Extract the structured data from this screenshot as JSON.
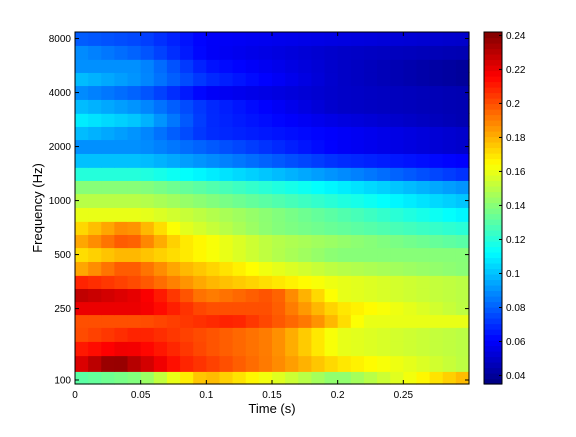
{
  "chart_data": {
    "type": "heatmap",
    "title": "",
    "xlabel": "Time (s)",
    "ylabel": "Frequency (Hz)",
    "xlim": [
      0,
      0.3
    ],
    "ylim": [
      95,
      8700
    ],
    "y_scale": "log",
    "x_ticks": [
      0,
      0.05,
      0.1,
      0.15,
      0.2,
      0.25
    ],
    "x_tick_labels": [
      "0",
      "0.05",
      "0.1",
      "0.15",
      "0.2",
      "0.25"
    ],
    "y_ticks": [
      100,
      250,
      500,
      1000,
      2000,
      4000,
      8000
    ],
    "y_tick_labels": [
      "100",
      "250",
      "500",
      "1000",
      "2000",
      "4000",
      "8000"
    ],
    "colorbar": {
      "colormap": "jet",
      "range": [
        0.035,
        0.242
      ],
      "ticks": [
        0.04,
        0.06,
        0.08,
        0.1,
        0.12,
        0.14,
        0.16,
        0.18,
        0.2,
        0.22,
        0.24
      ],
      "tick_labels": [
        "0.04",
        "0.06",
        "0.08",
        "0.1",
        "0.12",
        "0.14",
        "0.16",
        "0.18",
        "0.2",
        "0.22",
        "0.24"
      ]
    },
    "grid": false,
    "time_bins": 30,
    "band_frequencies_hz": [
      100,
      125,
      150,
      180,
      215,
      250,
      300,
      350,
      420,
      500,
      600,
      700,
      840,
      1000,
      1200,
      1400,
      1680,
      2000,
      2400,
      2800,
      3360,
      4000,
      4800,
      5600,
      6720,
      8000
    ],
    "band_profiles": [
      [
        [
          0,
          0.13
        ],
        [
          0.05,
          0.14
        ],
        [
          0.1,
          0.18
        ],
        [
          0.15,
          0.16
        ],
        [
          0.2,
          0.14
        ],
        [
          0.25,
          0.16
        ],
        [
          0.3,
          0.18
        ]
      ],
      [
        [
          0,
          0.22
        ],
        [
          0.03,
          0.24
        ],
        [
          0.08,
          0.21
        ],
        [
          0.15,
          0.19
        ],
        [
          0.2,
          0.17
        ],
        [
          0.25,
          0.16
        ],
        [
          0.3,
          0.15
        ]
      ],
      [
        [
          0,
          0.21
        ],
        [
          0.04,
          0.22
        ],
        [
          0.1,
          0.2
        ],
        [
          0.15,
          0.19
        ],
        [
          0.2,
          0.16
        ],
        [
          0.3,
          0.15
        ]
      ],
      [
        [
          0,
          0.2
        ],
        [
          0.05,
          0.21
        ],
        [
          0.1,
          0.2
        ],
        [
          0.15,
          0.19
        ],
        [
          0.2,
          0.16
        ],
        [
          0.3,
          0.15
        ]
      ],
      [
        [
          0,
          0.2
        ],
        [
          0.05,
          0.2
        ],
        [
          0.12,
          0.21
        ],
        [
          0.18,
          0.19
        ],
        [
          0.22,
          0.16
        ],
        [
          0.3,
          0.16
        ]
      ],
      [
        [
          0,
          0.22
        ],
        [
          0.05,
          0.22
        ],
        [
          0.1,
          0.2
        ],
        [
          0.15,
          0.2
        ],
        [
          0.2,
          0.17
        ],
        [
          0.3,
          0.15
        ]
      ],
      [
        [
          0,
          0.23
        ],
        [
          0.05,
          0.22
        ],
        [
          0.1,
          0.19
        ],
        [
          0.15,
          0.2
        ],
        [
          0.2,
          0.16
        ],
        [
          0.3,
          0.15
        ]
      ],
      [
        [
          0,
          0.21
        ],
        [
          0.05,
          0.2
        ],
        [
          0.1,
          0.18
        ],
        [
          0.15,
          0.17
        ],
        [
          0.2,
          0.16
        ],
        [
          0.3,
          0.15
        ]
      ],
      [
        [
          0,
          0.18
        ],
        [
          0.04,
          0.2
        ],
        [
          0.08,
          0.18
        ],
        [
          0.15,
          0.16
        ],
        [
          0.2,
          0.15
        ],
        [
          0.3,
          0.14
        ]
      ],
      [
        [
          0,
          0.17
        ],
        [
          0.04,
          0.18
        ],
        [
          0.08,
          0.17
        ],
        [
          0.15,
          0.15
        ],
        [
          0.2,
          0.14
        ],
        [
          0.3,
          0.14
        ]
      ],
      [
        [
          0,
          0.18
        ],
        [
          0.04,
          0.2
        ],
        [
          0.08,
          0.17
        ],
        [
          0.15,
          0.15
        ],
        [
          0.3,
          0.13
        ]
      ],
      [
        [
          0,
          0.17
        ],
        [
          0.04,
          0.19
        ],
        [
          0.08,
          0.16
        ],
        [
          0.15,
          0.14
        ],
        [
          0.3,
          0.12
        ]
      ],
      [
        [
          0,
          0.16
        ],
        [
          0.05,
          0.16
        ],
        [
          0.1,
          0.15
        ],
        [
          0.2,
          0.13
        ],
        [
          0.3,
          0.11
        ]
      ],
      [
        [
          0,
          0.15
        ],
        [
          0.05,
          0.15
        ],
        [
          0.1,
          0.14
        ],
        [
          0.2,
          0.12
        ],
        [
          0.3,
          0.1
        ]
      ],
      [
        [
          0,
          0.14
        ],
        [
          0.05,
          0.14
        ],
        [
          0.1,
          0.13
        ],
        [
          0.2,
          0.11
        ],
        [
          0.3,
          0.09
        ]
      ],
      [
        [
          0,
          0.12
        ],
        [
          0.05,
          0.12
        ],
        [
          0.1,
          0.11
        ],
        [
          0.2,
          0.09
        ],
        [
          0.3,
          0.07
        ]
      ],
      [
        [
          0,
          0.1
        ],
        [
          0.05,
          0.1
        ],
        [
          0.1,
          0.09
        ],
        [
          0.2,
          0.07
        ],
        [
          0.3,
          0.06
        ]
      ],
      [
        [
          0,
          0.09
        ],
        [
          0.05,
          0.09
        ],
        [
          0.1,
          0.08
        ],
        [
          0.2,
          0.06
        ],
        [
          0.3,
          0.05
        ]
      ],
      [
        [
          0,
          0.1
        ],
        [
          0.05,
          0.09
        ],
        [
          0.1,
          0.07
        ],
        [
          0.2,
          0.06
        ],
        [
          0.3,
          0.05
        ]
      ],
      [
        [
          0,
          0.11
        ],
        [
          0.05,
          0.1
        ],
        [
          0.1,
          0.07
        ],
        [
          0.2,
          0.055
        ],
        [
          0.3,
          0.045
        ]
      ],
      [
        [
          0,
          0.1
        ],
        [
          0.05,
          0.09
        ],
        [
          0.1,
          0.07
        ],
        [
          0.2,
          0.05
        ],
        [
          0.3,
          0.045
        ]
      ],
      [
        [
          0,
          0.09
        ],
        [
          0.05,
          0.08
        ],
        [
          0.1,
          0.06
        ],
        [
          0.2,
          0.05
        ],
        [
          0.3,
          0.045
        ]
      ],
      [
        [
          0,
          0.1
        ],
        [
          0.05,
          0.09
        ],
        [
          0.1,
          0.07
        ],
        [
          0.2,
          0.05
        ],
        [
          0.3,
          0.04
        ]
      ],
      [
        [
          0,
          0.09
        ],
        [
          0.05,
          0.09
        ],
        [
          0.1,
          0.065
        ],
        [
          0.2,
          0.05
        ],
        [
          0.3,
          0.04
        ]
      ],
      [
        [
          0,
          0.09
        ],
        [
          0.05,
          0.08
        ],
        [
          0.1,
          0.06
        ],
        [
          0.2,
          0.05
        ],
        [
          0.3,
          0.045
        ]
      ],
      [
        [
          0,
          0.08
        ],
        [
          0.05,
          0.075
        ],
        [
          0.1,
          0.06
        ],
        [
          0.2,
          0.055
        ],
        [
          0.3,
          0.05
        ]
      ]
    ]
  }
}
